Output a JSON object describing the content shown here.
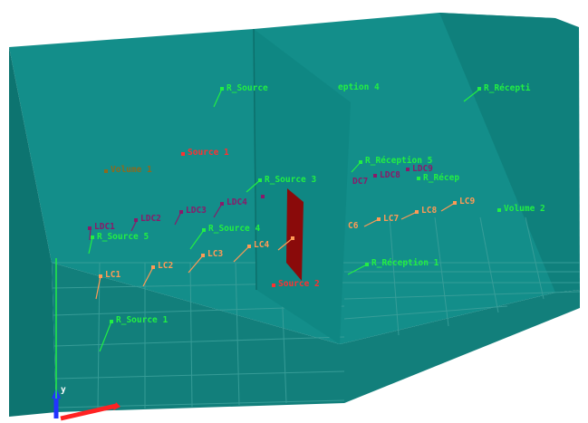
{
  "colors": {
    "background": "#ffffff",
    "back_wall": "#138e8a",
    "left_wall": "#0d7470",
    "right_wall": "#0f807c",
    "floor": "#127f7b",
    "partition": "#0f8783",
    "floor_grid": "#3a9f9a",
    "door": "#8a0a0a",
    "receiver_green": "#22ee44",
    "source_red": "#ff3030",
    "lc_orange": "#ff9a55",
    "ldc_purple": "#8a1a6a",
    "volume_brown": "#8a6a20",
    "volume2_green": "#22ee44",
    "axis_x": "#ff2222",
    "axis_y": "#2233ff",
    "axis_z": "#22ee44"
  },
  "labels": {
    "r_source_top": "R_Source",
    "reception_4": "eption 4",
    "r_reception_top_right": "R_Récepti",
    "source_1": "Source 1",
    "volume_1": "Volume 1",
    "r_source_3": "R_Source 3",
    "r_reception_5": "R_Réception 5",
    "ldc7": "DC7",
    "ldc8": "LDC8",
    "ldc9": "LDC9",
    "r_recep_short": "R_Récep",
    "ldc1": "LDC1",
    "ldc2": "LDC2",
    "ldc3": "LDC3",
    "ldc4": "LDC4",
    "r_source_4": "R_Source 4",
    "r_source_5": "R_Source 5",
    "lc1": "LC1",
    "lc2": "LC2",
    "lc3": "LC3",
    "lc4": "LC4",
    "lc6": "C6",
    "lc7": "LC7",
    "lc8": "LC8",
    "lc9": "LC9",
    "volume_2": "Volume 2",
    "r_reception_1": "R_Réception 1",
    "source_2": "Source 2",
    "r_source_1": "R_Source 1",
    "axis_y": "y"
  }
}
